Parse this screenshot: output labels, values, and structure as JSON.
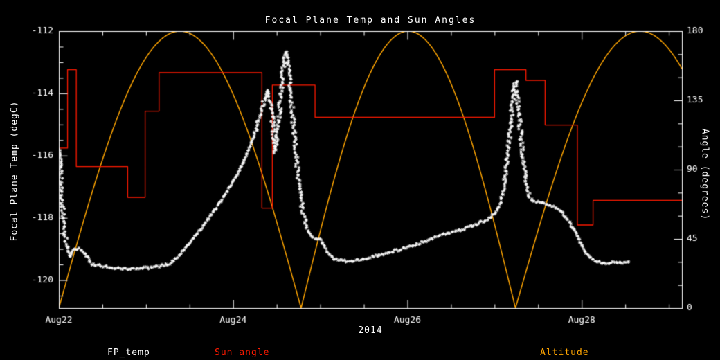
{
  "title": "Focal Plane Temp and Sun Angles",
  "colors": {
    "background": "#000000",
    "frame": "#FFFFFF",
    "fp_temp": "#FFFFFF",
    "sun_angle": "#FF1A00",
    "altitude": "#FFA500"
  },
  "axes": {
    "x": {
      "title": "2014",
      "tick_labels": [
        "Aug22",
        "Aug24",
        "Aug26",
        "Aug28"
      ],
      "tick_days": [
        0,
        2,
        4,
        6
      ],
      "minor_step_days": 0.5,
      "range_days": [
        0,
        7.15
      ]
    },
    "y_left": {
      "title": "Focal Plane Temp (degC)",
      "tick_labels": [
        "-112",
        "-114",
        "-116",
        "-118",
        "-120"
      ],
      "tick_values": [
        -112,
        -114,
        -116,
        -118,
        -120
      ],
      "minor_step": 0.5,
      "range": [
        -120.9,
        -112
      ]
    },
    "y_right": {
      "title": "Angle (degrees)",
      "tick_labels": [
        "0",
        "45",
        "90",
        "135",
        "180"
      ],
      "tick_values": [
        0,
        45,
        90,
        135,
        180
      ],
      "minor_step": 15,
      "range": [
        0,
        180
      ]
    }
  },
  "legend": [
    {
      "label": "FP_temp",
      "color": "#FFFFFF"
    },
    {
      "label": "Sun angle",
      "color": "#FF1A00"
    },
    {
      "label": "Altitude",
      "color": "#FFA500"
    }
  ],
  "chart_data": {
    "type": "line",
    "title": "Focal Plane Temp and Sun Angles",
    "xlabel": "2014",
    "ylabel_left": "Focal Plane Temp (degC)",
    "ylabel_right": "Angle (degrees)",
    "x_unit": "days since Aug 22 2014 00:00",
    "xlim_days": [
      0,
      7.15
    ],
    "ylim_left": [
      -120.9,
      -112
    ],
    "ylim_right": [
      0,
      180
    ],
    "grid": false,
    "series": [
      {
        "name": "FP_temp",
        "yaxis": "left",
        "style": "markers",
        "marker": "asterisk",
        "color": "#FFFFFF",
        "points": [
          [
            0.0,
            -115.8
          ],
          [
            0.015,
            -116.3
          ],
          [
            0.03,
            -117.1
          ],
          [
            0.05,
            -117.9
          ],
          [
            0.07,
            -118.5
          ],
          [
            0.1,
            -119.05
          ],
          [
            0.13,
            -119.25
          ],
          [
            0.16,
            -119.0
          ],
          [
            0.25,
            -119.0
          ],
          [
            0.31,
            -119.2
          ],
          [
            0.38,
            -119.5
          ],
          [
            0.5,
            -119.55
          ],
          [
            0.62,
            -119.6
          ],
          [
            0.72,
            -119.65
          ],
          [
            0.85,
            -119.65
          ],
          [
            0.95,
            -119.62
          ],
          [
            1.05,
            -119.6
          ],
          [
            1.15,
            -119.55
          ],
          [
            1.25,
            -119.5
          ],
          [
            1.35,
            -119.3
          ],
          [
            1.45,
            -119.0
          ],
          [
            1.55,
            -118.65
          ],
          [
            1.65,
            -118.3
          ],
          [
            1.75,
            -117.9
          ],
          [
            1.85,
            -117.5
          ],
          [
            1.95,
            -117.05
          ],
          [
            2.05,
            -116.6
          ],
          [
            2.15,
            -116.0
          ],
          [
            2.25,
            -115.3
          ],
          [
            2.32,
            -114.6
          ],
          [
            2.36,
            -114.2
          ],
          [
            2.4,
            -113.9
          ],
          [
            2.44,
            -114.4
          ],
          [
            2.48,
            -115.9
          ],
          [
            2.52,
            -115.0
          ],
          [
            2.56,
            -113.6
          ],
          [
            2.59,
            -112.8
          ],
          [
            2.61,
            -112.65
          ],
          [
            2.64,
            -113.4
          ],
          [
            2.68,
            -114.6
          ],
          [
            2.73,
            -116.2
          ],
          [
            2.79,
            -117.6
          ],
          [
            2.85,
            -118.4
          ],
          [
            2.92,
            -118.65
          ],
          [
            3.0,
            -118.7
          ],
          [
            3.06,
            -119.0
          ],
          [
            3.15,
            -119.3
          ],
          [
            3.3,
            -119.4
          ],
          [
            3.45,
            -119.35
          ],
          [
            3.6,
            -119.25
          ],
          [
            3.8,
            -119.1
          ],
          [
            4.0,
            -118.95
          ],
          [
            4.2,
            -118.75
          ],
          [
            4.4,
            -118.55
          ],
          [
            4.6,
            -118.4
          ],
          [
            4.8,
            -118.2
          ],
          [
            4.95,
            -118.0
          ],
          [
            5.02,
            -117.8
          ],
          [
            5.08,
            -117.5
          ],
          [
            5.13,
            -116.6
          ],
          [
            5.18,
            -115.2
          ],
          [
            5.22,
            -113.9
          ],
          [
            5.24,
            -113.6
          ],
          [
            5.27,
            -114.3
          ],
          [
            5.31,
            -115.6
          ],
          [
            5.36,
            -116.9
          ],
          [
            5.42,
            -117.45
          ],
          [
            5.52,
            -117.5
          ],
          [
            5.65,
            -117.6
          ],
          [
            5.75,
            -117.75
          ],
          [
            5.85,
            -118.1
          ],
          [
            5.95,
            -118.6
          ],
          [
            6.05,
            -119.15
          ],
          [
            6.15,
            -119.4
          ],
          [
            6.28,
            -119.45
          ],
          [
            6.4,
            -119.42
          ],
          [
            6.5,
            -119.45
          ],
          [
            6.55,
            -119.4
          ]
        ]
      },
      {
        "name": "Sun angle",
        "yaxis": "right",
        "style": "step",
        "color": "#FF1A00",
        "steps": [
          [
            0.0,
            0.1,
            104
          ],
          [
            0.1,
            0.2,
            155
          ],
          [
            0.2,
            0.79,
            92
          ],
          [
            0.79,
            0.99,
            72
          ],
          [
            0.99,
            1.15,
            128
          ],
          [
            1.15,
            2.33,
            153
          ],
          [
            2.33,
            2.45,
            65
          ],
          [
            2.45,
            2.94,
            145
          ],
          [
            2.94,
            5.0,
            124
          ],
          [
            5.0,
            5.36,
            155
          ],
          [
            5.36,
            5.58,
            148
          ],
          [
            5.58,
            5.95,
            119
          ],
          [
            5.95,
            6.13,
            54
          ],
          [
            6.13,
            7.15,
            70
          ]
        ]
      },
      {
        "name": "Altitude",
        "yaxis": "right",
        "style": "sine_arcs",
        "color": "#FFA500",
        "arcs": [
          [
            0.0,
            2.78,
            180
          ],
          [
            2.78,
            5.24,
            180
          ],
          [
            5.24,
            8.1,
            180
          ]
        ]
      }
    ]
  }
}
